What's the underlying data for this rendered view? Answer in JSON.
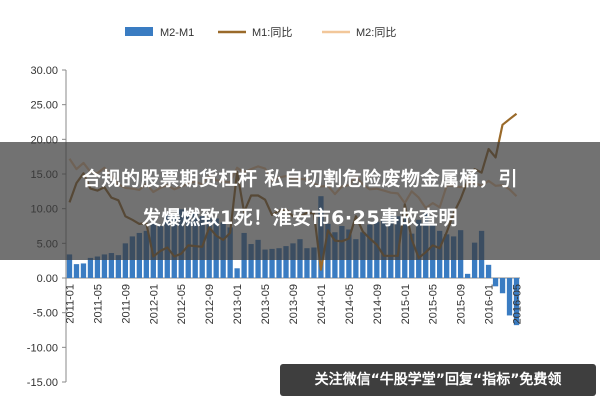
{
  "colors": {
    "m2_m1_bar": "#3a7cc2",
    "m1_line": "#9a6a2a",
    "m2_line": "#f2c79a",
    "overlay": "#3c3c3c"
  },
  "overlay": {
    "headline_line1": "合规的股票期货杠杆 私自切割危险废物金属桶，引",
    "headline_line2": "发爆燃致1死！淮安市6·25事故查明"
  },
  "watermark": {
    "text": "关注微信“牛股学堂”回复“指标”免费领"
  },
  "chart_data": {
    "type": "bar",
    "title": "",
    "xlabel": "",
    "ylabel": "",
    "ylim": [
      -15,
      30
    ],
    "yticks": [
      "30.00",
      "25.00",
      "20.00",
      "15.00",
      "10.00",
      "5.00",
      "0.00",
      "-5.00",
      "-10.00",
      "-15.00"
    ],
    "ytick_values": [
      30,
      25,
      20,
      15,
      10,
      5,
      0,
      -5,
      -10,
      -15
    ],
    "x_tick_labels": [
      "2011-01",
      "2011-05",
      "2011-09",
      "2012-01",
      "2012-05",
      "2012-09",
      "2013-01",
      "2013-05",
      "2013-09",
      "2014-01",
      "2014-05",
      "2014-09",
      "2015-01",
      "2015-05",
      "2015-09",
      "2016-01",
      "2016-05"
    ],
    "grid": false,
    "legend_position": "top",
    "months": [
      "2011-01",
      "2011-02",
      "2011-03",
      "2011-04",
      "2011-05",
      "2011-06",
      "2011-07",
      "2011-08",
      "2011-09",
      "2011-10",
      "2011-11",
      "2011-12",
      "2012-01",
      "2012-02",
      "2012-03",
      "2012-04",
      "2012-05",
      "2012-06",
      "2012-07",
      "2012-08",
      "2012-09",
      "2012-10",
      "2012-11",
      "2012-12",
      "2013-01",
      "2013-02",
      "2013-03",
      "2013-04",
      "2013-05",
      "2013-06",
      "2013-07",
      "2013-08",
      "2013-09",
      "2013-10",
      "2013-11",
      "2013-12",
      "2014-01",
      "2014-02",
      "2014-03",
      "2014-04",
      "2014-05",
      "2014-06",
      "2014-07",
      "2014-08",
      "2014-09",
      "2014-10",
      "2014-11",
      "2014-12",
      "2015-01",
      "2015-02",
      "2015-03",
      "2015-04",
      "2015-05",
      "2015-06",
      "2015-07",
      "2015-08",
      "2015-09",
      "2015-10",
      "2015-11",
      "2015-12",
      "2016-01",
      "2016-02",
      "2016-03",
      "2016-04",
      "2016-05"
    ],
    "series": [
      {
        "name": "M2-M1",
        "kind": "bar",
        "values": [
          3.4,
          2.0,
          2.1,
          2.9,
          3.1,
          3.4,
          3.6,
          3.3,
          5.0,
          6.0,
          6.5,
          6.8,
          8.0,
          7.5,
          9.1,
          9.1,
          9.9,
          8.9,
          9.3,
          8.9,
          8.6,
          8.6,
          8.0,
          7.3,
          1.4,
          6.5,
          4.9,
          5.5,
          4.1,
          4.2,
          4.3,
          4.6,
          5.0,
          5.6,
          4.3,
          4.4,
          11.8,
          7.8,
          6.6,
          7.5,
          7.0,
          5.6,
          6.6,
          7.7,
          8.1,
          8.3,
          9.0,
          8.9,
          9.3,
          6.4,
          8.4,
          9.4,
          7.6,
          6.8,
          6.3,
          6.0,
          6.9,
          0.6,
          5.1,
          6.8,
          1.9,
          -1.2,
          -2.2,
          -5.4,
          -6.8
        ]
      },
      {
        "name": "M1:同比",
        "kind": "line",
        "values": [
          10.9,
          13.7,
          15.1,
          12.9,
          12.6,
          13.1,
          11.6,
          11.2,
          8.9,
          8.4,
          7.8,
          7.9,
          3.1,
          3.9,
          4.4,
          3.1,
          3.5,
          4.7,
          4.6,
          4.5,
          7.3,
          6.1,
          5.5,
          6.5,
          15.3,
          9.5,
          11.9,
          11.9,
          11.3,
          9.1,
          9.7,
          9.9,
          8.9,
          8.9,
          9.4,
          9.3,
          1.2,
          6.9,
          5.4,
          5.3,
          5.7,
          8.9,
          6.7,
          5.7,
          4.8,
          3.2,
          3.2,
          3.2,
          10.6,
          5.6,
          2.9,
          3.7,
          4.7,
          4.3,
          6.6,
          9.3,
          11.4,
          14.0,
          15.7,
          15.2,
          18.6,
          17.4,
          22.1,
          22.9,
          23.7
        ]
      },
      {
        "name": "M2:同比",
        "kind": "line",
        "values": [
          17.2,
          15.7,
          16.6,
          15.3,
          15.1,
          15.9,
          14.7,
          13.5,
          13.0,
          12.9,
          12.7,
          13.6,
          12.4,
          13.0,
          13.4,
          12.8,
          13.2,
          13.6,
          13.9,
          13.5,
          14.8,
          14.1,
          13.9,
          13.8,
          15.9,
          15.2,
          15.7,
          16.1,
          15.8,
          14.0,
          14.5,
          14.7,
          14.2,
          14.3,
          14.2,
          13.6,
          13.2,
          13.3,
          12.1,
          13.2,
          13.4,
          14.7,
          13.5,
          12.8,
          12.9,
          12.6,
          12.3,
          12.2,
          10.8,
          12.5,
          11.6,
          10.1,
          10.8,
          10.2,
          13.3,
          13.3,
          13.1,
          13.5,
          13.7,
          13.3,
          14.0,
          13.3,
          13.4,
          12.8,
          11.8
        ]
      }
    ]
  }
}
